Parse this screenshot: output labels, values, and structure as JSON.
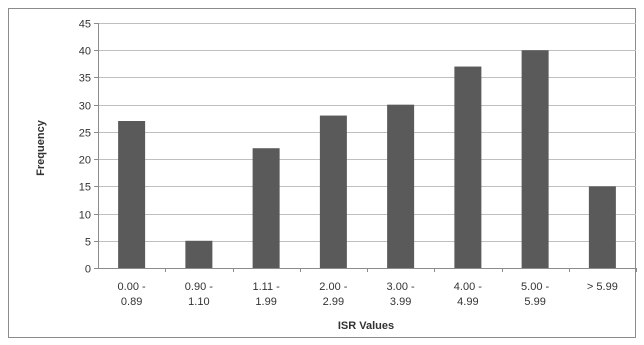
{
  "chart_data": {
    "type": "bar",
    "categories": [
      [
        "0.00 -",
        "0.89"
      ],
      [
        "0.90 -",
        "1.10"
      ],
      [
        "1.11 -",
        "1.99"
      ],
      [
        "2.00 -",
        "2.99"
      ],
      [
        "3.00 -",
        "3.99"
      ],
      [
        "4.00 -",
        "4.99"
      ],
      [
        "5.00 -",
        "5.99"
      ],
      [
        "> 5.99"
      ]
    ],
    "values": [
      27,
      5,
      22,
      28,
      30,
      37,
      40,
      15
    ],
    "xlabel": "ISR Values",
    "ylabel": "Frequency",
    "ylim": [
      0,
      45
    ],
    "yticks": [
      0,
      5,
      10,
      15,
      20,
      25,
      30,
      35,
      40,
      45
    ],
    "grid": true,
    "legend": "none",
    "colors": {
      "bar": "#5a5a5a",
      "grid": "#bfbfbf",
      "axis": "#8c8c8c"
    }
  }
}
